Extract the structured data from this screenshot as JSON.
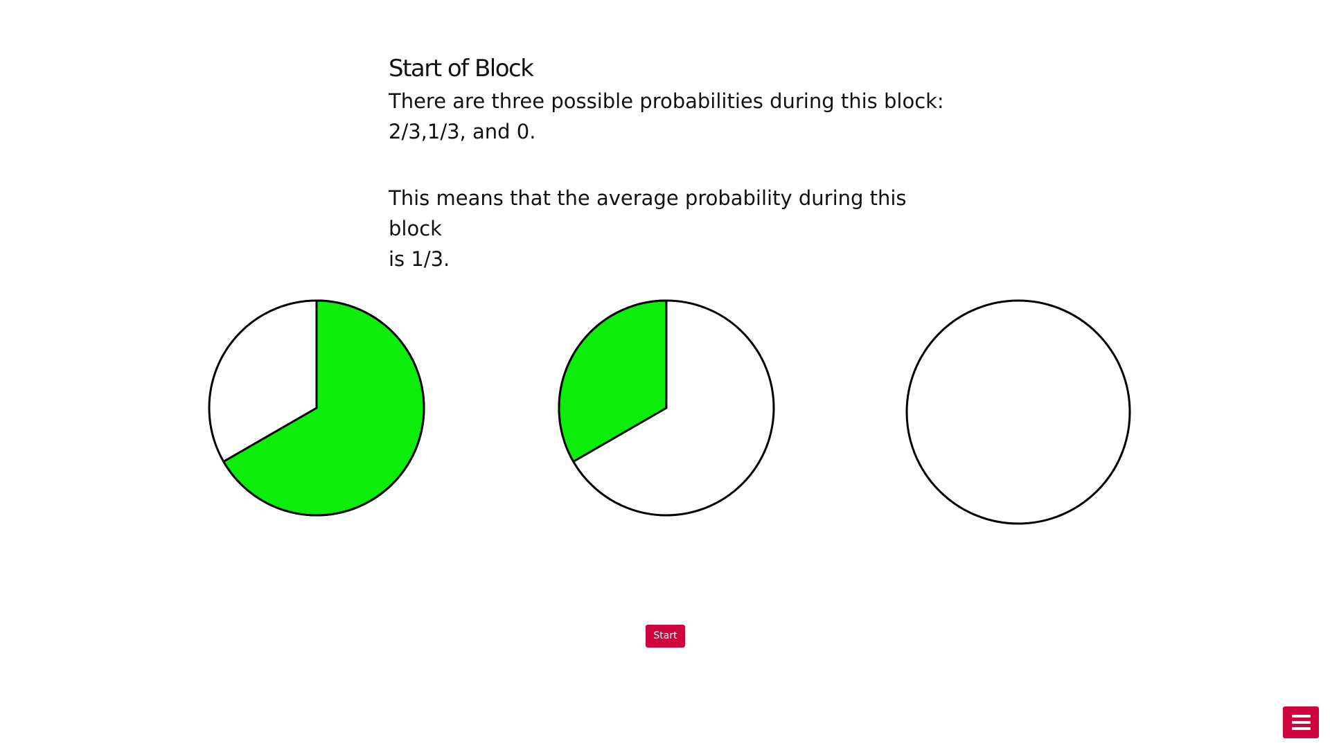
{
  "colors": {
    "accent": "#d0043c",
    "pie_fill": "#0ced0c",
    "pie_empty": "#ffffff",
    "pie_stroke": "#000000"
  },
  "content": {
    "title": "Start of Block",
    "line1": "There are three possible probabilities during this block:",
    "line2": "2/3,1/3, and 0.",
    "line3": "This means that the average probability during this block",
    "line4": "is 1/3."
  },
  "pies": [
    {
      "filled_fraction": 0.6667
    },
    {
      "filled_fraction": 0.3333
    },
    {
      "filled_fraction": 0
    }
  ],
  "buttons": {
    "start_label": "Start",
    "menu_icon": "hamburger-menu-icon"
  }
}
